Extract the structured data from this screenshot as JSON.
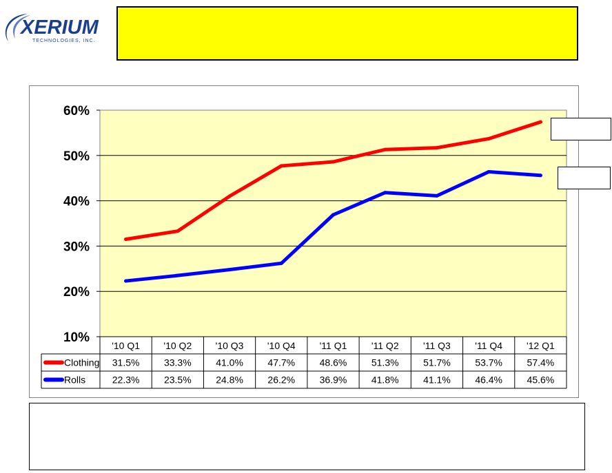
{
  "logo": {
    "text": "XERIUM",
    "subtext": "TECHNOLOGIES, INC."
  },
  "colors": {
    "clothing": "#ff0000",
    "rolls": "#0000ff",
    "plot_bg": "#ffffc0",
    "title_bg": "#ffff00"
  },
  "chart_data": {
    "type": "line",
    "categories": [
      "'10 Q1",
      "'10 Q2",
      "'10 Q3",
      "'10 Q4",
      "'11 Q1",
      "'11 Q2",
      "'11 Q3",
      "'11 Q4",
      "'12 Q1"
    ],
    "series": [
      {
        "name": "Clothing",
        "color": "#ff0000",
        "values": [
          31.5,
          33.3,
          41.0,
          47.7,
          48.6,
          51.3,
          51.7,
          53.7,
          57.4
        ],
        "labels": [
          "31.5%",
          "33.3%",
          "41.0%",
          "47.7%",
          "48.6%",
          "51.3%",
          "51.7%",
          "53.7%",
          "57.4%"
        ]
      },
      {
        "name": "Rolls",
        "color": "#0000ff",
        "values": [
          22.3,
          23.5,
          24.8,
          26.2,
          36.9,
          41.8,
          41.1,
          46.4,
          45.6
        ],
        "labels": [
          "22.3%",
          "23.5%",
          "24.8%",
          "26.2%",
          "36.9%",
          "41.8%",
          "41.1%",
          "46.4%",
          "45.6%"
        ]
      }
    ],
    "y_ticks": [
      "10%",
      "20%",
      "30%",
      "40%",
      "50%",
      "60%"
    ],
    "ylim": [
      10,
      60
    ],
    "grid": true,
    "legend": "data-table-below"
  }
}
